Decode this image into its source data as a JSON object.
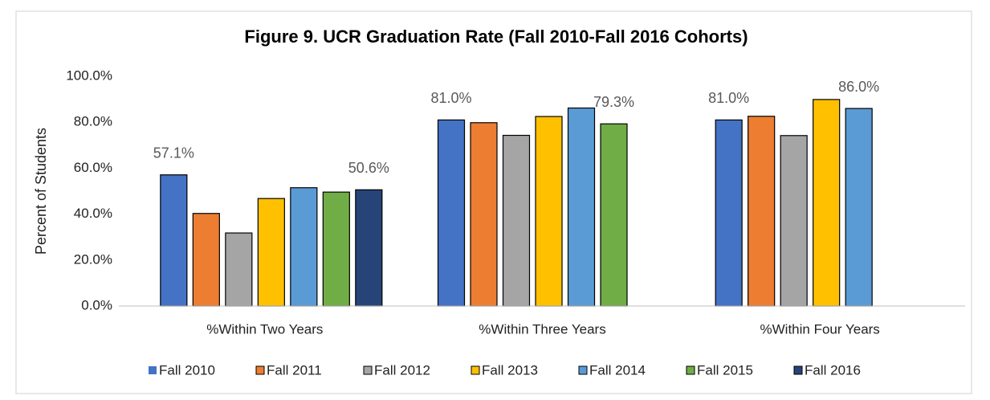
{
  "chart_data": {
    "type": "bar",
    "title": "Figure 9.  UCR Graduation Rate (Fall 2010-Fall 2016 Cohorts)",
    "y_label": "Percent of Students",
    "categories": [
      "%Within Two Years",
      "%Within Three Years",
      "%Within Four Years"
    ],
    "series": [
      {
        "name": "Fall 2010",
        "color": "#4472c4",
        "values": [
          57.1,
          81.0,
          81.0
        ],
        "value_labels": [
          "57.1%",
          "81.0%",
          "81.0%"
        ]
      },
      {
        "name": "Fall 2011",
        "color": "#ed7d31",
        "values": [
          40.3,
          79.8,
          82.6
        ]
      },
      {
        "name": "Fall 2012",
        "color": "#a5a5a5",
        "values": [
          31.8,
          74.3,
          74.2
        ]
      },
      {
        "name": "Fall 2013",
        "color": "#ffc000",
        "values": [
          46.8,
          82.5,
          89.9
        ]
      },
      {
        "name": "Fall 2014",
        "color": "#5b9bd5",
        "values": [
          51.5,
          86.2,
          86.0
        ],
        "value_labels": [
          null,
          null,
          "86.0%"
        ]
      },
      {
        "name": "Fall 2015",
        "color": "#70ad47",
        "values": [
          49.6,
          79.3,
          null
        ],
        "value_labels": [
          null,
          "79.3%",
          null
        ]
      },
      {
        "name": "Fall 2016",
        "color": "#264478",
        "values": [
          50.6,
          null,
          null
        ],
        "value_labels": [
          "50.6%",
          null,
          null
        ]
      }
    ],
    "ylim": [
      0,
      100
    ],
    "yticks": [
      {
        "value": 0,
        "label": "0.0%"
      },
      {
        "value": 20,
        "label": "20.0%"
      },
      {
        "value": 40,
        "label": "40.0%"
      },
      {
        "value": 60,
        "label": "60.0%"
      },
      {
        "value": 80,
        "label": "80.0%"
      },
      {
        "value": 100,
        "label": "100.0%"
      }
    ],
    "grid": false,
    "legend": "bottom"
  }
}
